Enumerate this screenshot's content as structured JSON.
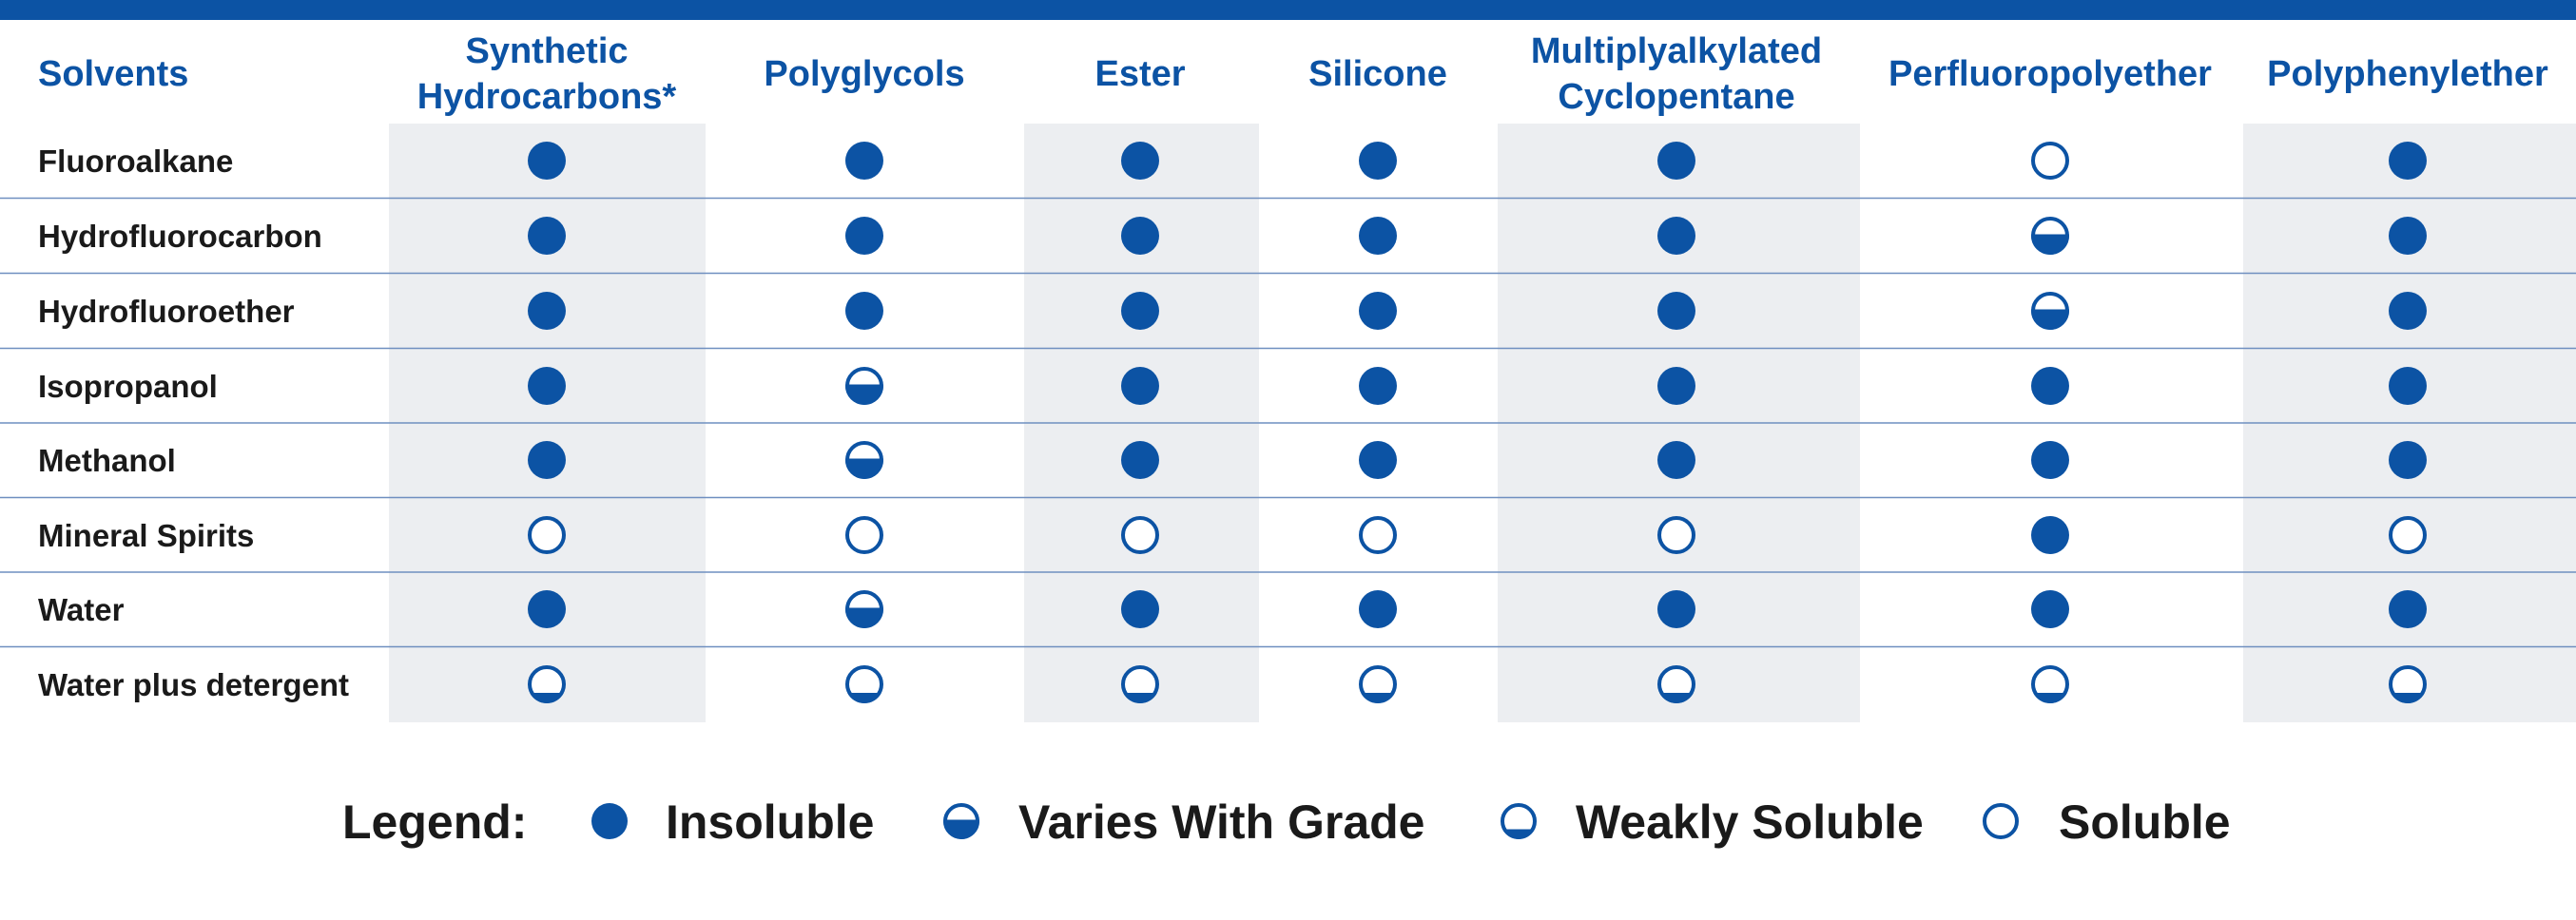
{
  "colors": {
    "accent": "#0c53a4",
    "band": "#eceef1",
    "rule": "#6f8fc0",
    "text": "#1a1a1a"
  },
  "table": {
    "row_header": "Solvents",
    "columns": [
      [
        "Synthetic",
        "Hydrocarbons*"
      ],
      [
        "Polyglycols"
      ],
      [
        "Ester"
      ],
      [
        "Silicone"
      ],
      [
        "Multiplyalkylated",
        "Cyclopentane"
      ],
      [
        "Perfluoropolyether"
      ],
      [
        "Polyphenylether"
      ]
    ],
    "shaded_columns": [
      true,
      false,
      true,
      false,
      true,
      false,
      true
    ],
    "rows": [
      {
        "solvent": "Fluoroalkane",
        "ratings": [
          "insoluble",
          "insoluble",
          "insoluble",
          "insoluble",
          "insoluble",
          "soluble",
          "insoluble"
        ]
      },
      {
        "solvent": "Hydrofluorocarbon",
        "ratings": [
          "insoluble",
          "insoluble",
          "insoluble",
          "insoluble",
          "insoluble",
          "varies",
          "insoluble"
        ]
      },
      {
        "solvent": "Hydrofluoroether",
        "ratings": [
          "insoluble",
          "insoluble",
          "insoluble",
          "insoluble",
          "insoluble",
          "varies",
          "insoluble"
        ]
      },
      {
        "solvent": "Isopropanol",
        "ratings": [
          "insoluble",
          "varies",
          "insoluble",
          "insoluble",
          "insoluble",
          "insoluble",
          "insoluble"
        ]
      },
      {
        "solvent": "Methanol",
        "ratings": [
          "insoluble",
          "varies",
          "insoluble",
          "insoluble",
          "insoluble",
          "insoluble",
          "insoluble"
        ]
      },
      {
        "solvent": "Mineral Spirits",
        "ratings": [
          "soluble",
          "soluble",
          "soluble",
          "soluble",
          "soluble",
          "insoluble",
          "soluble"
        ]
      },
      {
        "solvent": "Water",
        "ratings": [
          "insoluble",
          "varies",
          "insoluble",
          "insoluble",
          "insoluble",
          "insoluble",
          "insoluble"
        ]
      },
      {
        "solvent": "Water plus detergent",
        "ratings": [
          "weakly",
          "weakly",
          "weakly",
          "weakly",
          "weakly",
          "weakly",
          "weakly"
        ]
      }
    ]
  },
  "legend": {
    "title": "Legend:",
    "items": [
      {
        "key": "insoluble",
        "label": "Insoluble"
      },
      {
        "key": "varies",
        "label": "Varies With Grade"
      },
      {
        "key": "weakly",
        "label": "Weakly Soluble"
      },
      {
        "key": "soluble",
        "label": "Soluble"
      }
    ]
  }
}
